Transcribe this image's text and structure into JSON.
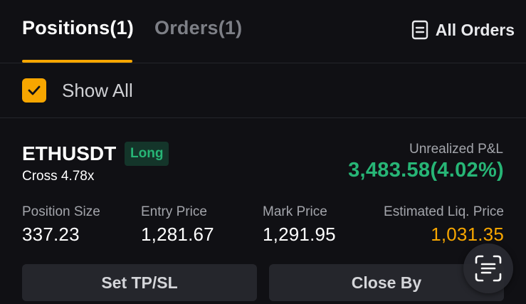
{
  "tabs": {
    "positions_label": "Positions(1)",
    "orders_label": "Orders(1)",
    "all_orders_label": "All Orders",
    "active": "positions"
  },
  "filter": {
    "show_all_label": "Show All",
    "show_all_checked": true
  },
  "position": {
    "symbol": "ETHUSDT",
    "side": "Long",
    "margin_mode": "Cross 4.78x",
    "unrealized_pnl_label": "Unrealized P&L",
    "unrealized_pnl_value": "3,483.58(4.02%)",
    "metrics": [
      {
        "label": "Position Size",
        "value": "337.23"
      },
      {
        "label": "Entry Price",
        "value": "1,281.67"
      },
      {
        "label": "Mark Price",
        "value": "1,291.95"
      },
      {
        "label": "Estimated Liq. Price",
        "value": "1,031.35"
      }
    ]
  },
  "actions": {
    "set_tpsl_label": "Set TP/SL",
    "close_by_label": "Close By"
  },
  "colors": {
    "accent": "#f7a600",
    "profit": "#27b576",
    "background": "#101014",
    "button_bg": "#25262c"
  },
  "icons": {
    "all_orders": "document-icon",
    "checkbox": "check-icon",
    "fab": "scan-icon"
  }
}
